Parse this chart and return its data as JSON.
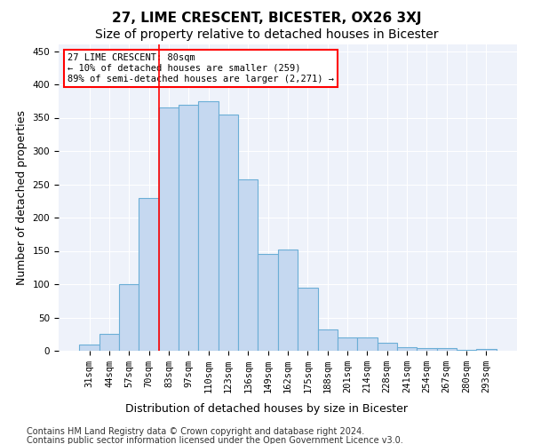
{
  "title": "27, LIME CRESCENT, BICESTER, OX26 3XJ",
  "subtitle": "Size of property relative to detached houses in Bicester",
  "xlabel": "Distribution of detached houses by size in Bicester",
  "ylabel": "Number of detached properties",
  "categories": [
    "31sqm",
    "44sqm",
    "57sqm",
    "70sqm",
    "83sqm",
    "97sqm",
    "110sqm",
    "123sqm",
    "136sqm",
    "149sqm",
    "162sqm",
    "175sqm",
    "188sqm",
    "201sqm",
    "214sqm",
    "228sqm",
    "241sqm",
    "254sqm",
    "267sqm",
    "280sqm",
    "293sqm"
  ],
  "values": [
    10,
    25,
    100,
    230,
    365,
    370,
    375,
    355,
    258,
    145,
    152,
    95,
    32,
    20,
    20,
    12,
    5,
    4,
    4,
    2,
    3
  ],
  "bar_color": "#c5d8f0",
  "bar_edge_color": "#6baed6",
  "bar_edge_width": 0.8,
  "red_line_x": 3.5,
  "annotation_text": "27 LIME CRESCENT: 80sqm\n← 10% of detached houses are smaller (259)\n89% of semi-detached houses are larger (2,271) →",
  "ylim": [
    0,
    460
  ],
  "yticks": [
    0,
    50,
    100,
    150,
    200,
    250,
    300,
    350,
    400,
    450
  ],
  "footer_line1": "Contains HM Land Registry data © Crown copyright and database right 2024.",
  "footer_line2": "Contains public sector information licensed under the Open Government Licence v3.0.",
  "background_color": "#eef2fa",
  "grid_color": "#ffffff",
  "title_fontsize": 11,
  "subtitle_fontsize": 10,
  "axis_label_fontsize": 9,
  "tick_fontsize": 7.5,
  "footer_fontsize": 7
}
